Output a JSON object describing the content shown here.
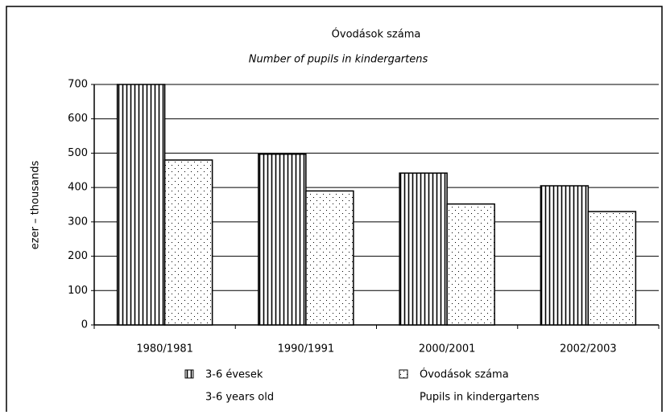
{
  "chart_data": {
    "type": "bar",
    "title": "Óvodások száma",
    "subtitle": "Number of pupils in kindergartens",
    "y_label": "ezer – thousands",
    "categories": [
      "1980/1981",
      "1990/1991",
      "2000/2001",
      "2002/2003"
    ],
    "series": [
      {
        "name": "3-6 évesek",
        "name_en": "3-6 years old",
        "color": "#000000",
        "pattern": "vertical-stripes",
        "values": [
          700,
          497,
          442,
          405
        ]
      },
      {
        "name": "Óvodások száma",
        "name_en": "Pupils in kindergartens",
        "color": "#000000",
        "pattern": "dots",
        "values": [
          480,
          390,
          352,
          330
        ]
      }
    ],
    "ylim": [
      0,
      700
    ],
    "yticks": [
      0,
      100,
      200,
      300,
      400,
      500,
      600,
      700
    ],
    "grid": true,
    "legend": "bottom"
  }
}
